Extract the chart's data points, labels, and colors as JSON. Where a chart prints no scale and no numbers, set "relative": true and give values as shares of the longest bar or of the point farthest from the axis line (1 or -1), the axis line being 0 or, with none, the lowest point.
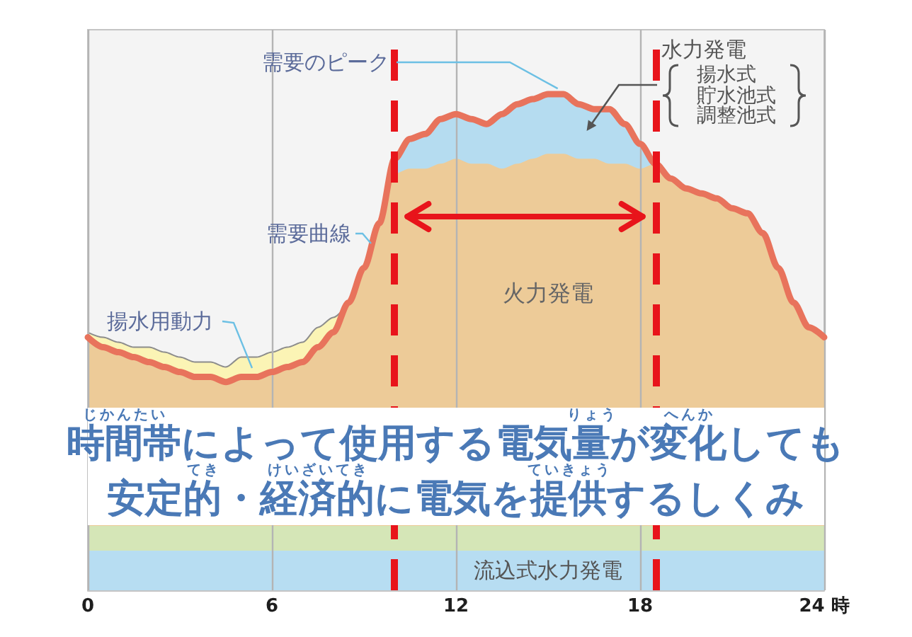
{
  "chart_data": {
    "type": "area",
    "title": "時間帯によって使用する電気量が変化しても",
    "subtitle": "安定的・経済的に電気を提供するしくみ",
    "annotations": [
      {
        "text": "需要のピーク",
        "x": 15.5,
        "y": 1
      },
      "揚水式",
      "貯水池式",
      "調整池式",
      "じかんたい",
      "りょう",
      "へんか",
      "てき",
      "けいざいてき",
      "ていきょう"
    ],
    "x": [
      0,
      0.5,
      1,
      1.5,
      2,
      2.5,
      3,
      3.5,
      4,
      4.5,
      5,
      5.5,
      6,
      6.5,
      7,
      7.5,
      8,
      8.5,
      9,
      9.5,
      10,
      10.5,
      11,
      11.5,
      12,
      12.5,
      13,
      13.5,
      14,
      14.5,
      15,
      15.5,
      16,
      16.5,
      17,
      17.5,
      18,
      18.5,
      19,
      19.5,
      20,
      20.5,
      21,
      21.5,
      22,
      22.5,
      23,
      23.5,
      24
    ],
    "xlim": [
      0,
      24
    ],
    "xticks": [
      0,
      6,
      12,
      18,
      {
        "value": 24,
        "label": "24 時"
      }
    ],
    "relative": true,
    "grid": "x",
    "tick_labels": "x",
    "series": [
      {
        "name": "揚水用動力",
        "color": "#fbf4b5",
        "values": [
          0.52,
          0.51,
          0.5,
          0.49,
          0.49,
          0.48,
          0.47,
          0.46,
          0.46,
          0.45,
          0.47,
          0.47,
          0.48,
          0.49,
          0.5,
          0.53,
          0.55,
          0.58,
          null,
          null,
          null,
          null,
          null,
          null,
          null,
          null,
          null,
          null,
          null,
          null,
          null,
          null,
          null,
          null,
          null,
          null,
          null,
          null,
          null,
          null,
          null,
          null,
          null,
          null,
          null,
          null,
          null,
          null,
          null
        ]
      },
      {
        "name": "水力発電",
        "color": "#b5dcf0",
        "values": [
          null,
          null,
          null,
          null,
          null,
          null,
          null,
          null,
          null,
          null,
          null,
          null,
          null,
          null,
          null,
          null,
          null,
          null,
          null,
          0.74,
          0.87,
          0.91,
          0.92,
          0.95,
          0.96,
          0.95,
          0.94,
          0.96,
          0.98,
          0.99,
          1,
          1,
          0.98,
          0.97,
          0.97,
          0.94,
          0.9,
          0.86,
          null,
          null,
          null,
          null,
          null,
          null,
          null,
          null,
          null,
          null,
          null
        ]
      },
      {
        "name": "火力発電",
        "color": "#edcb98",
        "values": [
          0.51,
          0.49,
          0.48,
          0.47,
          0.46,
          0.45,
          0.44,
          0.43,
          0.43,
          0.42,
          0.43,
          0.43,
          0.44,
          0.45,
          0.46,
          0.49,
          0.52,
          0.58,
          0.65,
          0.74,
          0.84,
          0.85,
          0.85,
          0.86,
          0.87,
          0.86,
          0.86,
          0.85,
          0.86,
          0.87,
          0.88,
          0.88,
          0.87,
          0.87,
          0.86,
          0.86,
          0.85,
          0.86,
          0.83,
          0.81,
          0.8,
          0.79,
          0.77,
          0.76,
          0.72,
          0.65,
          0.58,
          0.53,
          0.51
        ]
      },
      {
        "color": "#d5e6b7",
        "values": [
          0.13,
          0.13,
          0.13,
          0.13,
          0.13,
          0.13,
          0.13,
          0.13,
          0.13,
          0.13,
          0.13,
          0.13,
          0.13,
          0.13,
          0.13,
          0.13,
          0.13,
          0.13,
          0.13,
          0.13,
          0.13,
          0.13,
          0.13,
          0.13,
          0.13,
          0.13,
          0.13,
          0.13,
          0.13,
          0.13,
          0.13,
          0.13,
          0.13,
          0.13,
          0.13,
          0.13,
          0.13,
          0.13,
          0.13,
          0.13,
          0.13,
          0.13,
          0.13,
          0.13,
          0.13,
          0.13,
          0.13,
          0.13,
          0.13
        ]
      },
      {
        "name": "流込式水力発電",
        "color": "#b7ddf2",
        "values": [
          0.08,
          0.08,
          0.08,
          0.08,
          0.08,
          0.08,
          0.08,
          0.08,
          0.08,
          0.08,
          0.08,
          0.08,
          0.08,
          0.08,
          0.08,
          0.08,
          0.08,
          0.08,
          0.08,
          0.08,
          0.08,
          0.08,
          0.08,
          0.08,
          0.08,
          0.08,
          0.08,
          0.08,
          0.08,
          0.08,
          0.08,
          0.08,
          0.08,
          0.08,
          0.08,
          0.08,
          0.08,
          0.08,
          0.08,
          0.08,
          0.08,
          0.08,
          0.08,
          0.08,
          0.08,
          0.08,
          0.08,
          0.08,
          0.08
        ]
      },
      {
        "type": "line",
        "name": "需要曲線",
        "color": "#e8735c",
        "values": [
          0.51,
          0.49,
          0.48,
          0.47,
          0.46,
          0.45,
          0.44,
          0.43,
          0.43,
          0.42,
          0.43,
          0.43,
          0.44,
          0.45,
          0.46,
          0.49,
          0.52,
          0.58,
          0.65,
          0.74,
          0.87,
          0.91,
          0.92,
          0.95,
          0.96,
          0.95,
          0.94,
          0.96,
          0.98,
          0.99,
          1,
          1,
          0.98,
          0.97,
          0.97,
          0.94,
          0.9,
          0.86,
          0.83,
          0.81,
          0.8,
          0.79,
          0.77,
          0.76,
          0.72,
          0.65,
          0.58,
          0.53,
          0.51
        ]
      }
    ],
    "ref_lines": [
      {
        "axis": "x",
        "value": 10,
        "color": "#e8141b",
        "line_style": "dashed"
      },
      {
        "axis": "x",
        "value": 18.5,
        "color": "#e8141b",
        "line_style": "dashed"
      }
    ]
  }
}
